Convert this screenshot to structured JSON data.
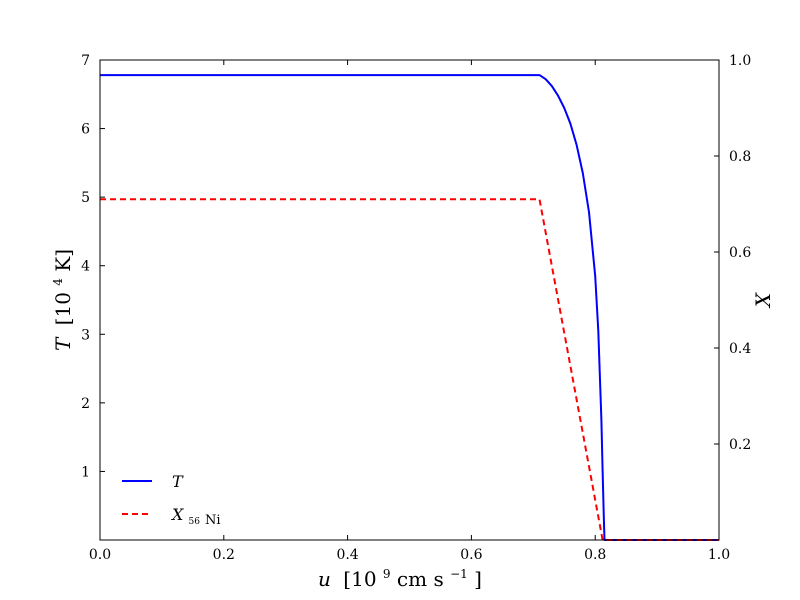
{
  "chart_data": {
    "type": "line",
    "x_axis": {
      "label_var": "u",
      "label_unit_prefix": "[10",
      "label_unit_exp": "9",
      "label_unit_mid": " cm s",
      "label_unit_exp2": "−1",
      "label_unit_suffix": "]",
      "range": [
        0.0,
        1.0
      ],
      "ticks": [
        "0.0",
        "0.2",
        "0.4",
        "0.6",
        "0.8",
        "1.0"
      ],
      "tick_values": [
        0.0,
        0.2,
        0.4,
        0.6,
        0.8,
        1.0
      ]
    },
    "y_left": {
      "label_var": "T",
      "label_unit_prefix": "[10",
      "label_unit_exp": "4",
      "label_unit_suffix": " K]",
      "range": [
        0,
        7
      ],
      "ticks": [
        "1",
        "2",
        "3",
        "4",
        "5",
        "6",
        "7"
      ],
      "tick_values": [
        1,
        2,
        3,
        4,
        5,
        6,
        7
      ]
    },
    "y_right": {
      "label_var": "X",
      "range": [
        0,
        1.0
      ],
      "ticks": [
        "0.2",
        "0.4",
        "0.6",
        "0.8",
        "1.0"
      ],
      "tick_values": [
        0.2,
        0.4,
        0.6,
        0.8,
        1.0
      ]
    },
    "series": [
      {
        "name": "T",
        "axis": "left",
        "color": "#0000ff",
        "style": "solid",
        "x": [
          0.0,
          0.71,
          0.72,
          0.73,
          0.74,
          0.75,
          0.76,
          0.77,
          0.78,
          0.79,
          0.8,
          0.805,
          0.81,
          0.812,
          0.814,
          0.815,
          0.816,
          1.0
        ],
        "y": [
          6.78,
          6.78,
          6.72,
          6.62,
          6.48,
          6.3,
          6.07,
          5.76,
          5.35,
          4.78,
          3.85,
          3.05,
          1.75,
          1.0,
          0.3,
          0.0,
          0.0,
          0.0
        ]
      },
      {
        "name": "X",
        "name_sub": "56",
        "name_sub2": "Ni",
        "axis": "right",
        "color": "#ff0000",
        "style": "dashed",
        "x": [
          0.0,
          0.71,
          0.812,
          1.0
        ],
        "y": [
          0.71,
          0.71,
          0.0,
          0.0
        ]
      }
    ],
    "legend_placement": "lower-left",
    "grid": false
  }
}
